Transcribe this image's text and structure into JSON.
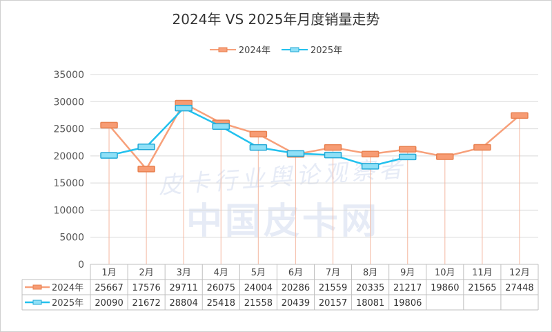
{
  "chart_data": {
    "type": "line",
    "title": "2024年 VS 2025年月度销量走势",
    "categories": [
      "1月",
      "2月",
      "3月",
      "4月",
      "5月",
      "6月",
      "7月",
      "8月",
      "9月",
      "10月",
      "11月",
      "12月"
    ],
    "series": [
      {
        "name": "2024年",
        "color": "#f7a07a",
        "values": [
          25667,
          17576,
          29711,
          26075,
          24004,
          20286,
          21559,
          20335,
          21217,
          19860,
          21565,
          27448
        ]
      },
      {
        "name": "2025年",
        "color": "#22c1ee",
        "values": [
          20090,
          21672,
          28804,
          25418,
          21558,
          20439,
          20157,
          18081,
          19806,
          null,
          null,
          null
        ]
      }
    ],
    "ylim": [
      0,
      35000
    ],
    "yticks": [
      "0",
      "5000",
      "10000",
      "15000",
      "20000",
      "25000",
      "30000",
      "35000"
    ],
    "grid": true,
    "legend": "top",
    "data_table": true
  },
  "watermark": {
    "line1": "皮卡行业舆论观察者",
    "line2": "中国皮卡网"
  }
}
